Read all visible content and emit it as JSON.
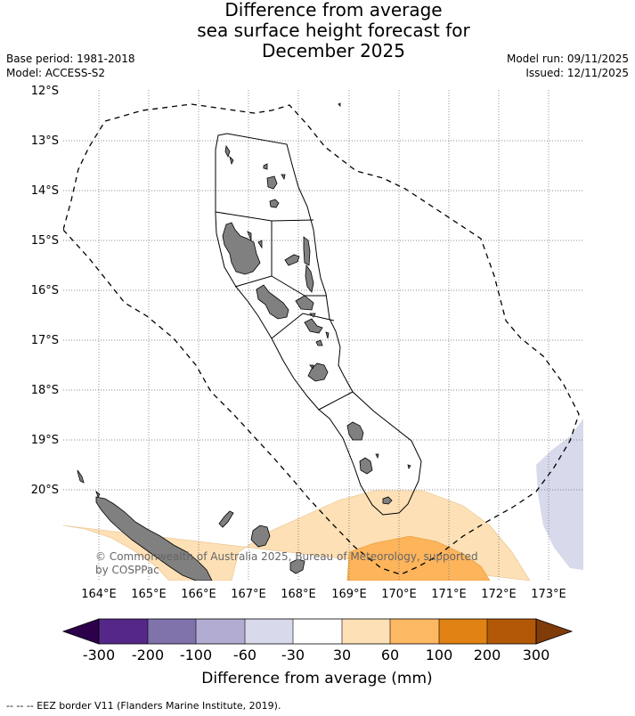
{
  "title": {
    "line1": "Difference from average",
    "line2": "sea surface height forecast for",
    "line3": "December 2025"
  },
  "meta": {
    "base_period": "Base period: 1981-2018",
    "model": "Model: ACCESS-S2",
    "model_run": "Model run: 09/11/2025",
    "issued": "Issued: 12/11/2025"
  },
  "map": {
    "lat_labels": [
      "12°S",
      "13°S",
      "14°S",
      "15°S",
      "16°S",
      "17°S",
      "18°S",
      "19°S",
      "20°S"
    ],
    "lon_labels": [
      "164°E",
      "165°E",
      "166°E",
      "167°E",
      "168°E",
      "169°E",
      "170°E",
      "171°E",
      "172°E",
      "173°E"
    ],
    "copyright_line1": "© Commonwealth of Australia 2025, Bureau of Meteorology, supported",
    "copyright_line2": "by COSPPac",
    "colors": {
      "land": "#808080",
      "positive_30_60": "#fde0b5",
      "positive_60_100": "#fdb45b",
      "negative_30_60": "#d7d7ea"
    }
  },
  "colorbar": {
    "title": "Difference from average (mm)",
    "tick_labels": [
      "-300",
      "-200",
      "-100",
      "-60",
      "-30",
      "30",
      "60",
      "100",
      "200",
      "300"
    ],
    "colors": [
      "#2d004b",
      "#542788",
      "#8073ac",
      "#b2abd2",
      "#d8daeb",
      "#ffffff",
      "#fee0b6",
      "#fdb863",
      "#e08214",
      "#b35806",
      "#7f3b08"
    ]
  },
  "footer": "--  --  -- EEZ border V11 (Flanders Marine Institute, 2019)."
}
